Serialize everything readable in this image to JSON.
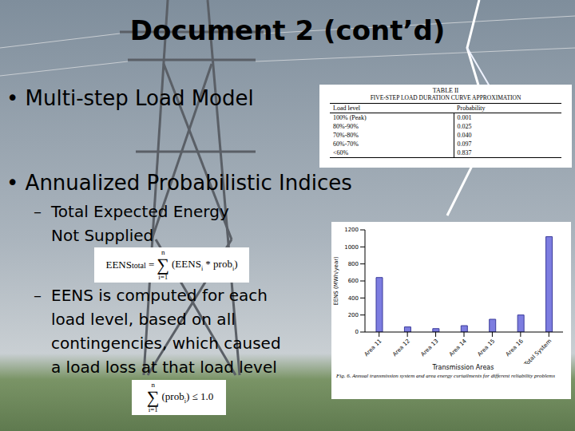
{
  "title": "Document 2 (cont’d)",
  "bullet_mark": "•",
  "sub_mark": "–",
  "bullets": [
    {
      "text": "Multi-step Load Model"
    },
    {
      "text": "Annualized Probabilistic Indices",
      "sub": [
        {
          "lines": [
            "Total Expected Energy",
            "Not Supplied"
          ]
        },
        {
          "lines": [
            "EENS is computed for each",
            "load level, based on all",
            "contingencies, which caused",
            "a load loss at that load level"
          ]
        }
      ]
    }
  ],
  "formulas": [
    {
      "lhs": "EENS",
      "lhs_sub": "total",
      "eq": "=",
      "sigma": "∑",
      "upper": "n",
      "lower": "i=1",
      "open": "(EENS",
      "sub1": "i",
      "mid": " * prob",
      "sub2": "i",
      "close": ")"
    },
    {
      "sigma": "∑",
      "upper": "n",
      "lower": "i=1",
      "open": "(prob",
      "sub1": "i",
      "close": ")",
      "rhs": "≤ 1.0"
    }
  ],
  "table": {
    "label": "TABLE II",
    "title": "FIVE-STEP LOAD DURATION CURVE APPROXIMATION",
    "header": [
      "Load level",
      "Probability"
    ],
    "rows": [
      [
        "100% (Peak)",
        "0.001"
      ],
      [
        "80%-90%",
        "0.025"
      ],
      [
        "70%-80%",
        "0.040"
      ],
      [
        "60%-70%",
        "0.097"
      ],
      [
        "<60%",
        "0.837"
      ]
    ]
  },
  "chart_data": {
    "type": "bar",
    "categories": [
      "Area 11",
      "Area 12",
      "Area 13",
      "Area 14",
      "Area 15",
      "Area 16",
      "Total System"
    ],
    "values": [
      640,
      60,
      40,
      75,
      150,
      200,
      1120
    ],
    "color": "#7d7de0",
    "ylim": [
      0,
      1200
    ],
    "yticks": [
      0,
      200,
      400,
      600,
      800,
      1000,
      1200
    ],
    "y_label": "EENS (MWh/year)",
    "x_label": "Transmission Areas",
    "caption": "Fig. 6. Annual transmission system and area energy curtailments for different reliability problems",
    "grid": false
  }
}
